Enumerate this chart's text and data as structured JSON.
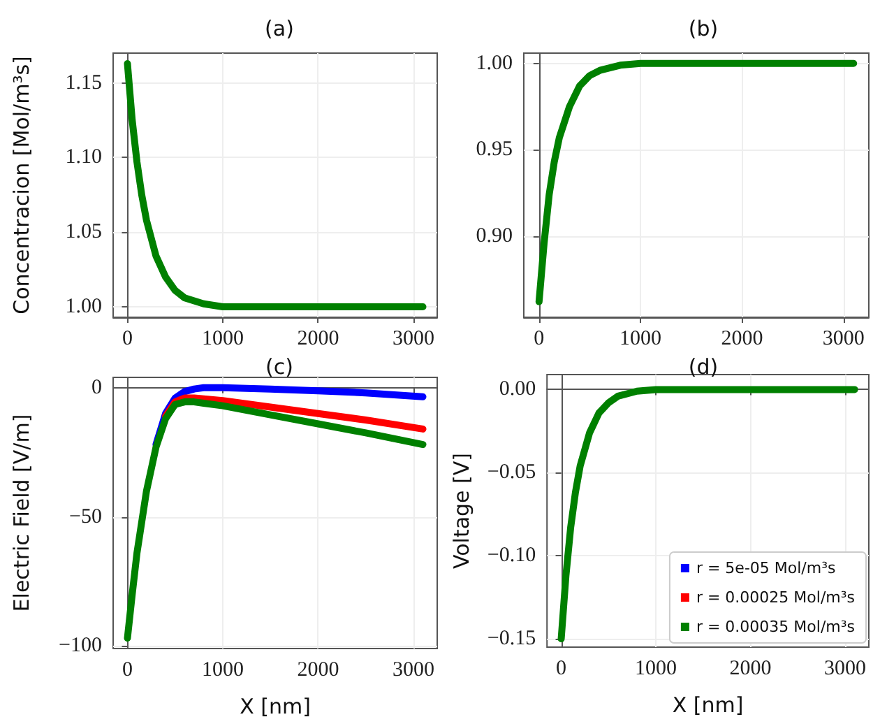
{
  "chart_data": [
    {
      "type": "line",
      "title": "(a)",
      "ylabel": "Concentracion [Mol/m³s]",
      "x": [
        0,
        50,
        100,
        150,
        200,
        300,
        400,
        500,
        600,
        800,
        1000,
        1500,
        2000,
        2500,
        3100
      ],
      "series": [
        {
          "color": "#008000",
          "values": [
            1.163,
            1.125,
            1.097,
            1.075,
            1.058,
            1.034,
            1.02,
            1.011,
            1.006,
            1.002,
            1.0,
            1.0,
            1.0,
            1.0,
            1.0
          ]
        }
      ],
      "xlim": [
        -150,
        3250
      ],
      "xticks": [
        0,
        1000,
        2000,
        3000
      ],
      "ylim": [
        0.993,
        1.17
      ],
      "yticks": [
        {
          "value": 1,
          "label": "1.00"
        },
        {
          "value": 1.05,
          "label": "1.05"
        },
        {
          "value": 1.1,
          "label": "1.10"
        },
        {
          "value": 1.15,
          "label": "1.15"
        }
      ],
      "grid": true
    },
    {
      "type": "line",
      "title": "(b)",
      "x": [
        0,
        50,
        100,
        150,
        200,
        300,
        400,
        500,
        600,
        800,
        1000,
        1500,
        2000,
        2500,
        3100
      ],
      "series": [
        {
          "color": "#008000",
          "values": [
            0.862,
            0.896,
            0.924,
            0.943,
            0.957,
            0.975,
            0.987,
            0.993,
            0.996,
            0.999,
            1.0,
            1.0,
            1.0,
            1.0,
            1.0
          ]
        }
      ],
      "xlim": [
        -150,
        3250
      ],
      "xticks": [
        0,
        1000,
        2000,
        3000
      ],
      "ylim": [
        0.853,
        1.006
      ],
      "yticks": [
        {
          "value": 0.9,
          "label": "0.90"
        },
        {
          "value": 0.95,
          "label": "0.95"
        },
        {
          "value": 1,
          "label": "1.00"
        }
      ],
      "grid": true
    },
    {
      "type": "line",
      "title": "(c)",
      "xlabel": "X [nm]",
      "ylabel": "Electric Field [V/m]",
      "x": [
        0,
        50,
        100,
        200,
        300,
        400,
        500,
        600,
        700,
        800,
        1000,
        1500,
        2000,
        2500,
        3100
      ],
      "series": [
        {
          "color": "#0000ff",
          "values": [
            null,
            null,
            null,
            null,
            -22,
            -10,
            -4,
            -1.5,
            -0.5,
            0,
            0,
            -0.5,
            -1.2,
            -2,
            -3.5
          ]
        },
        {
          "color": "#ff0000",
          "values": [
            null,
            null,
            null,
            null,
            null,
            -11,
            -5.5,
            -4,
            -4,
            -4.3,
            -5,
            -7.5,
            -10,
            -12.5,
            -16
          ]
        },
        {
          "color": "#008000",
          "values": [
            -97,
            -80,
            -64,
            -40,
            -23,
            -12,
            -6.5,
            -5.5,
            -5.5,
            -6,
            -7,
            -10.5,
            -14,
            -17.5,
            -22
          ]
        }
      ],
      "xlim": [
        -150,
        3250
      ],
      "xticks": [
        0,
        1000,
        2000,
        3000
      ],
      "ylim": [
        -101,
        4
      ],
      "yticks": [
        -100,
        -50,
        0
      ],
      "grid": true
    },
    {
      "type": "line",
      "title": "(d)",
      "xlabel": "X [nm]",
      "ylabel": "Voltage [V]",
      "x": [
        0,
        50,
        100,
        150,
        200,
        300,
        400,
        500,
        600,
        800,
        1000,
        1500,
        2000,
        2500,
        3100
      ],
      "series": [
        {
          "name": "r = 5e-05 Mol/m³s",
          "color": "#0000ff",
          "values": [
            null,
            null,
            null,
            null,
            null,
            null,
            null,
            null,
            null,
            null,
            null,
            null,
            null,
            null,
            null
          ]
        },
        {
          "name": "r = 0.00025 Mol/m³s",
          "color": "#ff0000",
          "values": [
            null,
            null,
            null,
            null,
            null,
            null,
            null,
            null,
            null,
            null,
            null,
            null,
            null,
            null,
            null
          ]
        },
        {
          "name": "r = 0.00035 Mol/m³s",
          "color": "#008000",
          "values": [
            -0.15,
            -0.112,
            -0.083,
            -0.062,
            -0.046,
            -0.026,
            -0.014,
            -0.008,
            -0.004,
            -0.001,
            0,
            0,
            0,
            0,
            0
          ]
        }
      ],
      "xlim": [
        -150,
        3250
      ],
      "xticks": [
        0,
        1000,
        2000,
        3000
      ],
      "ylim": [
        -0.155,
        0.009
      ],
      "yticks": [
        {
          "value": -0.15,
          "label": "−0.15"
        },
        {
          "value": -0.1,
          "label": "−0.10"
        },
        {
          "value": -0.05,
          "label": "−0.05"
        },
        {
          "value": 0,
          "label": "0.00"
        }
      ],
      "grid": true,
      "legend": "bottom right"
    }
  ]
}
